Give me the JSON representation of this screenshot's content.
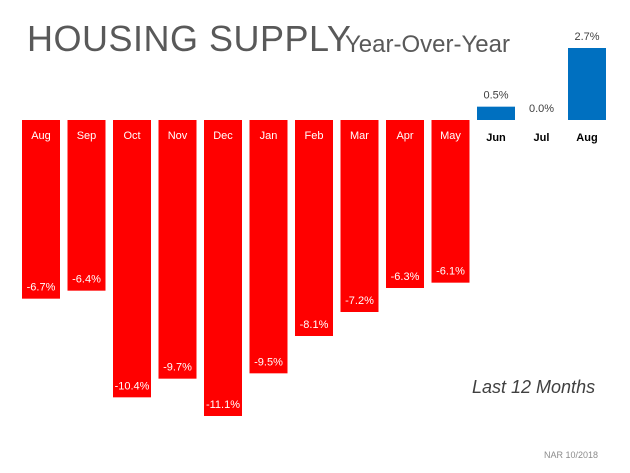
{
  "title": "HOUSING SUPPLY",
  "subtitle": "Year-Over-Year",
  "period_note": "Last 12 Months",
  "source": "NAR 10/2018",
  "colors": {
    "negative": "#ff0000",
    "positive": "#0070c0",
    "title": "#595959"
  },
  "chart_data": {
    "type": "bar",
    "categories": [
      "Aug",
      "Sep",
      "Oct",
      "Nov",
      "Dec",
      "Jan",
      "Feb",
      "Mar",
      "Apr",
      "May",
      "Jun",
      "Jul",
      "Aug"
    ],
    "values": [
      -6.7,
      -6.4,
      -10.4,
      -9.7,
      -11.1,
      -9.5,
      -8.1,
      -7.2,
      -6.3,
      -6.1,
      0.5,
      0.0,
      2.7
    ],
    "value_labels": [
      "-6.7%",
      "-6.4%",
      "-10.4%",
      "-9.7%",
      "-11.1%",
      "-9.5%",
      "-8.1%",
      "-7.2%",
      "-6.3%",
      "-6.1%",
      "0.5%",
      "0.0%",
      "2.7%"
    ],
    "title": "HOUSING SUPPLY",
    "subtitle": "Year-Over-Year",
    "xlabel": "",
    "ylabel": "",
    "ylim": [
      -11.1,
      2.7
    ],
    "grid": false,
    "legend": "none"
  }
}
